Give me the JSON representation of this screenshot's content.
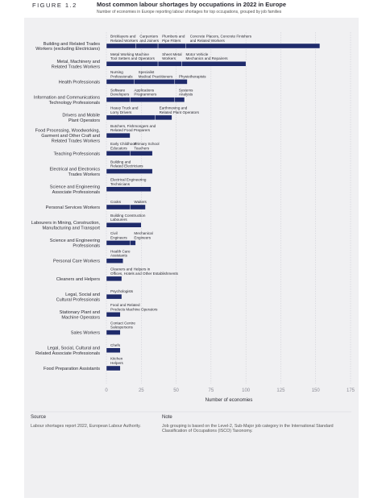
{
  "chart_data": {
    "type": "stacked-bar-h",
    "figure_label": "FIGURE 1.2",
    "title": "Most common labour shortages by occupations in 2022 in Europe",
    "subtitle": "Number of economies in Europe reporting labour shortages for top occupations, grouped by job families",
    "xlabel": "Number of economies",
    "xlim": [
      0,
      175
    ],
    "xticks": [
      0,
      25,
      50,
      75,
      100,
      125,
      150,
      175
    ],
    "grid": true,
    "color": "#1f2b6b",
    "groups": [
      {
        "name": "Building and Related Trades\nWorkers (excluding Electricians)",
        "segments": [
          {
            "label": "Bricklayers and\nRelated Workers",
            "value": 21
          },
          {
            "label": "Carpenters\nand Joiners",
            "value": 16
          },
          {
            "label": "Plumbers and\nPipe Fitters",
            "value": 20
          },
          {
            "label": "Concrete Placers, Concrete Finishers\nand Related Workers",
            "value": 96
          }
        ]
      },
      {
        "name": "Metal, Machinery and\nRelated Trades Workers",
        "segments": [
          {
            "label": "Metal Working Machine\nTool Setters and Operators",
            "value": 37
          },
          {
            "label": "Sheet Metal\nWorkers",
            "value": 17
          },
          {
            "label": "Motor Vehicle\nMechanics and Repairers",
            "value": 46
          }
        ]
      },
      {
        "name": "Health Professionals",
        "segments": [
          {
            "label": "Nursing\nProfessionals",
            "value": 20
          },
          {
            "label": "Specialist\nMedical Practitioners",
            "value": 29
          },
          {
            "label": "Physiotherapists",
            "value": 9
          }
        ]
      },
      {
        "name": "Information and Communications\nTechnology Professionals",
        "segments": [
          {
            "label": "Software\nDevelopers",
            "value": 17
          },
          {
            "label": "Applications\nProgrammers",
            "value": 32
          },
          {
            "label": "Systems\nAnalysts",
            "value": 7
          }
        ]
      },
      {
        "name": "Drivers and Mobile\nPlant Operators",
        "segments": [
          {
            "label": "Heavy Truck and\nLorry Drivers",
            "value": 35
          },
          {
            "label": "Earthmoving and\nRelated Plant Operators",
            "value": 12
          }
        ]
      },
      {
        "name": "Food Processing, Woodworking,\nGarment and Other Craft and\nRelated Trades Workers",
        "segments": [
          {
            "label": "Butchers, Fishmongers and\nRelated Food Preparers",
            "value": 17
          }
        ]
      },
      {
        "name": "Teaching Professionals",
        "segments": [
          {
            "label": "Early Childhood\nEducators",
            "value": 17
          },
          {
            "label": "Primary School\nTeachers",
            "value": 16
          }
        ]
      },
      {
        "name": "Electrical and Electronics\nTrades Workers",
        "segments": [
          {
            "label": "Building and\nRelated Electricians",
            "value": 33
          }
        ]
      },
      {
        "name": "Science and Engineering\nAssociate Professionals",
        "segments": [
          {
            "label": "Electrical Engineering\nTechnicians",
            "value": 32
          }
        ]
      },
      {
        "name": "Personal Services Workers",
        "segments": [
          {
            "label": "Cooks",
            "value": 17
          },
          {
            "label": "Waiters",
            "value": 11
          }
        ]
      },
      {
        "name": "Labourers in Mining, Construction,\nManufacturing and Transport",
        "segments": [
          {
            "label": "Building Construction\nLabourers",
            "value": 25
          }
        ]
      },
      {
        "name": "Science and Engineering\nProfessionals",
        "segments": [
          {
            "label": "Civil\nEngineers",
            "value": 17
          },
          {
            "label": "Mechanical\nEngineers",
            "value": 4
          }
        ]
      },
      {
        "name": "Personal Care Workers",
        "segments": [
          {
            "label": "Health Care\nAssistants",
            "value": 12
          }
        ]
      },
      {
        "name": "Cleaners and Helpers",
        "segments": [
          {
            "label": "Cleaners and Helpers in\nOffices, Hotels and Other Establishments",
            "value": 11
          }
        ]
      },
      {
        "name": "Legal, Social and\nCultural Professionals",
        "segments": [
          {
            "label": "Psychologists",
            "value": 11
          }
        ]
      },
      {
        "name": "Stationary Plant and\nMachine Operators",
        "segments": [
          {
            "label": "Food and Related\nProducts Machine Operators",
            "value": 10
          }
        ]
      },
      {
        "name": "Sales Workers",
        "segments": [
          {
            "label": "Contact Centre\nSalespersons",
            "value": 10
          }
        ]
      },
      {
        "name": "Legal, Social, Cultural and\nRelated Associate Professionals",
        "segments": [
          {
            "label": "Chefs",
            "value": 10
          }
        ]
      },
      {
        "name": "Food Preparation Assistants",
        "segments": [
          {
            "label": "Kitchen\nHelpers",
            "value": 10
          }
        ]
      }
    ]
  },
  "footer": {
    "source_title": "Source",
    "source_text": "Labour shortages report 2022, European Labour Authority.",
    "note_title": "Note",
    "note_text": "Job grouping is based on the Level-2, Sub-Major job category in the  International Standard\nClassification of Occupations (ISCO) Taxonomy."
  }
}
